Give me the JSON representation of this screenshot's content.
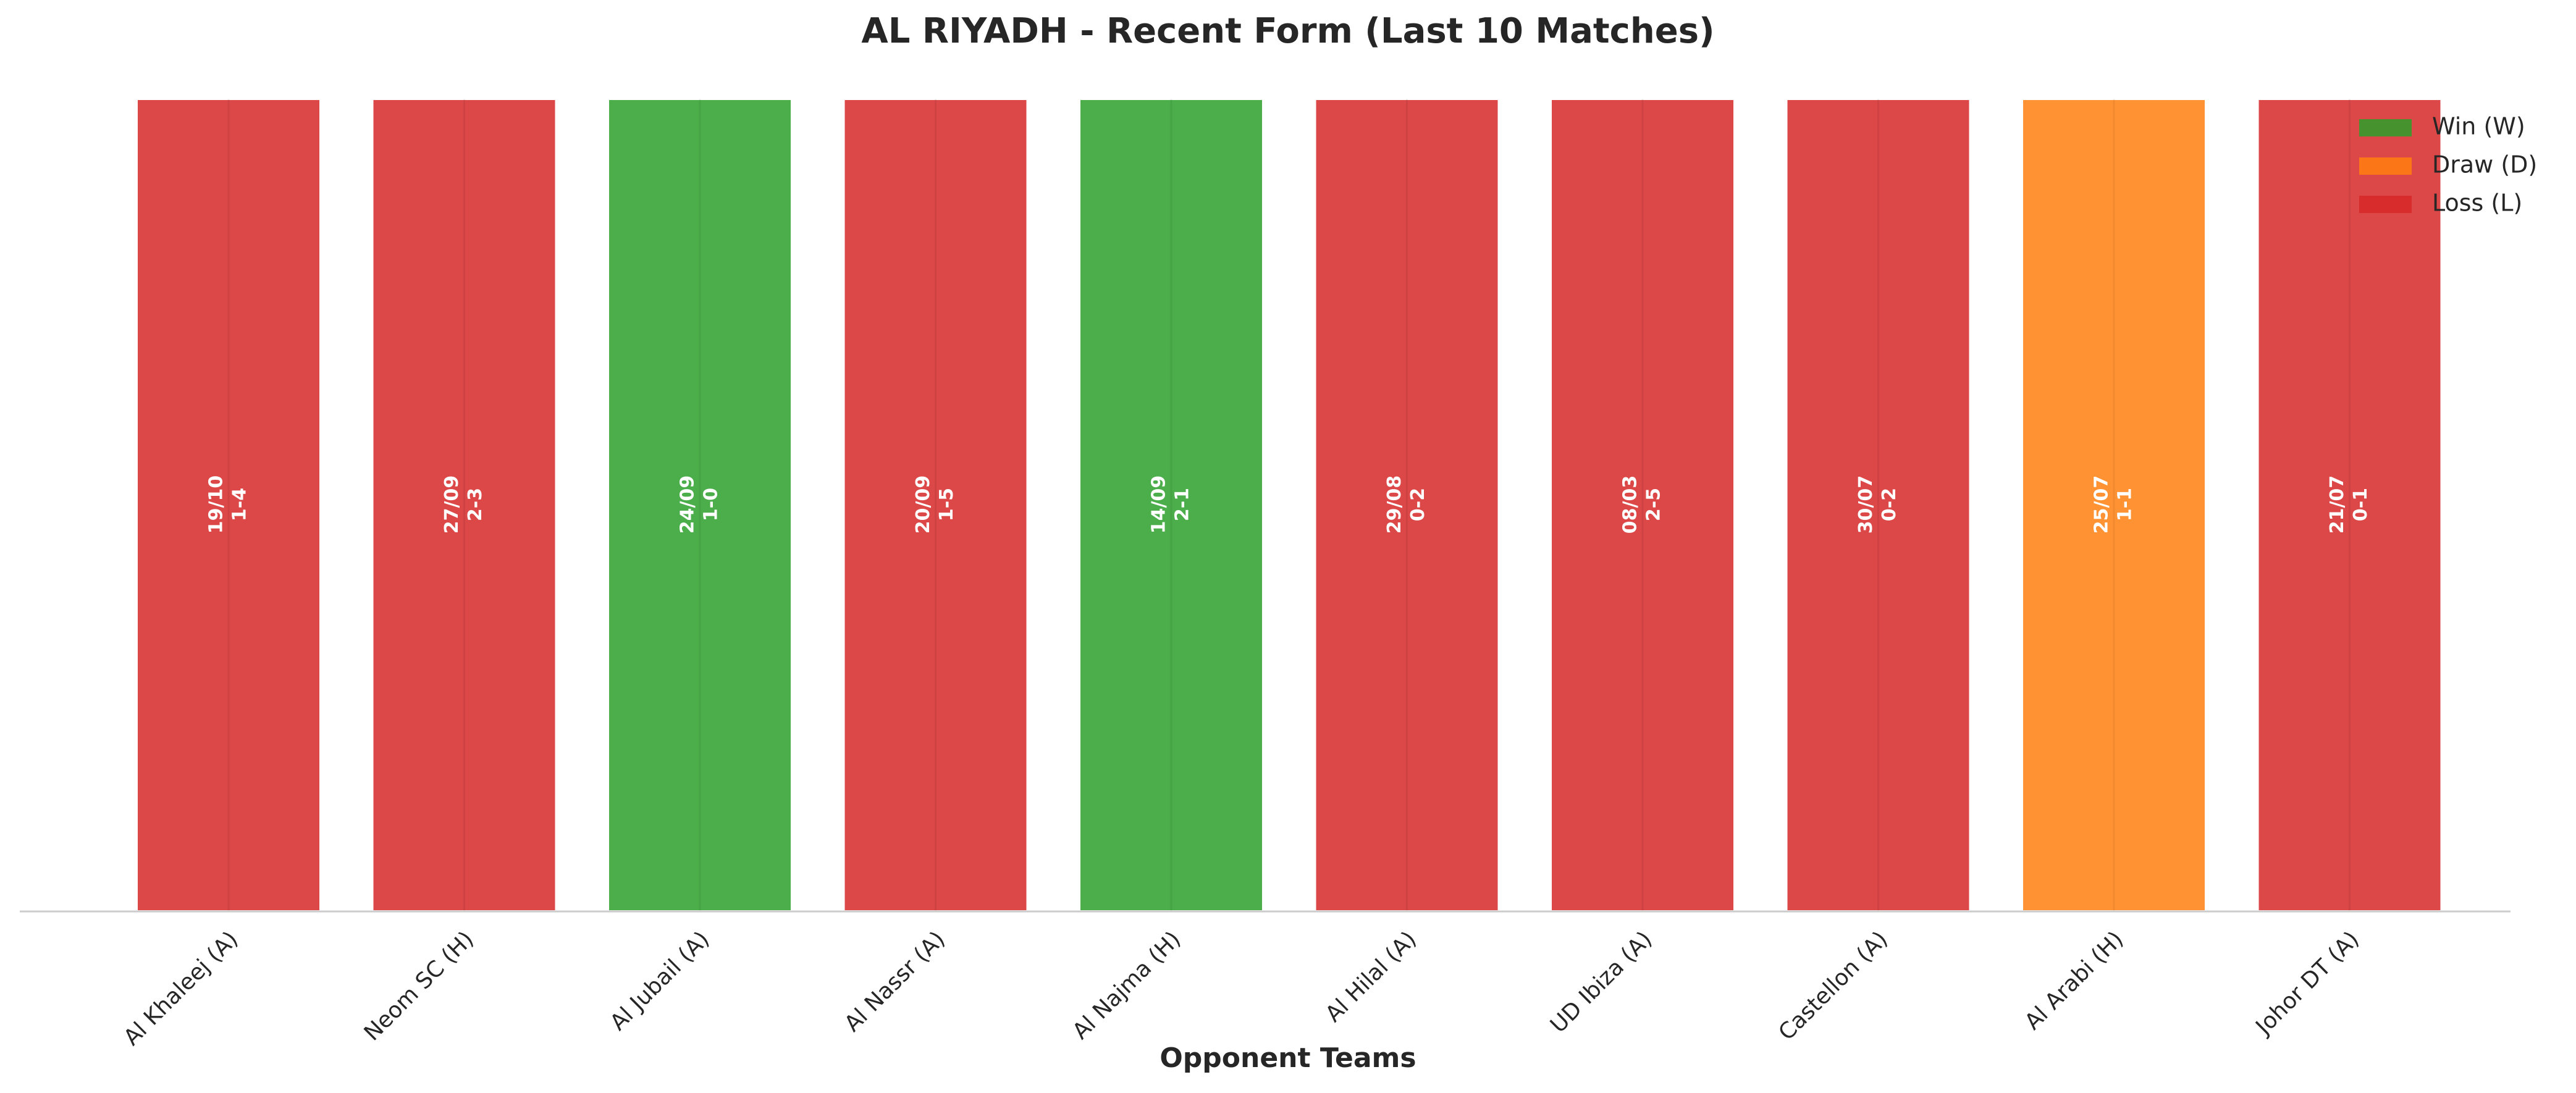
{
  "chart_data": {
    "type": "bar",
    "title": "AL RIYADH - Recent Form (Last 10 Matches)",
    "x_label": "Opponent Teams",
    "categories": [
      "Al Khaleej (A)",
      "Neom SC (H)",
      "Al Jubail (A)",
      "Al Nassr (A)",
      "Al Najma (H)",
      "Al Hilal (A)",
      "UD Ibiza (A)",
      "Castellon (A)",
      "Al Arabi (H)",
      "Johor DT (A)"
    ],
    "values": [
      1,
      1,
      1,
      1,
      1,
      1,
      1,
      1,
      1,
      1
    ],
    "dates": [
      "19/10",
      "27/09",
      "24/09",
      "20/09",
      "14/09",
      "29/08",
      "08/03",
      "30/07",
      "25/07",
      "21/07"
    ],
    "scores": [
      "1-4",
      "2-3",
      "1-0",
      "1-5",
      "2-1",
      "0-2",
      "2-5",
      "0-2",
      "1-1",
      "0-1"
    ],
    "colors": [
      "#d62728",
      "#d62728",
      "#2ca02c",
      "#d62728",
      "#2ca02c",
      "#d62728",
      "#d62728",
      "#d62728",
      "#ff7f0e",
      "#d62728"
    ],
    "ylim": [
      0,
      1
    ],
    "legend": [
      {
        "name": "Win (W)",
        "color": "#2ca02c"
      },
      {
        "name": "Draw (D)",
        "color": "#ff7f0e"
      },
      {
        "name": "Loss (L)",
        "color": "#d62728"
      }
    ],
    "legend_position": "upper right"
  }
}
